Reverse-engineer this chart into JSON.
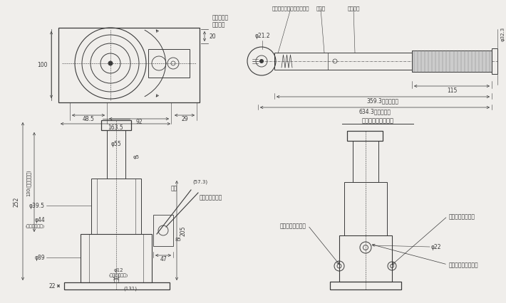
{
  "bg_color": "#f0eeeb",
  "line_color": "#3a3a3a",
  "labels": {
    "lever_rotation": "操作レバー\n回転方向",
    "release_screw_inlet": "リリーズスクリュウ差込口",
    "extendable": "伸縮式",
    "stopper": "ストッパ",
    "lever_socket": "レバーソケット",
    "handle": "取手",
    "oil_filling": "オイルフィリング",
    "lever_inlet": "操作レバー差込口",
    "release_screw2": "リリーズスクリュウ",
    "lever_detail_title": "專用操作レバー詳細",
    "phi21_2": "φ21.2",
    "phi32_3": "φ32.3",
    "phi55": "φ55",
    "phi5": "φ5",
    "phi39_5": "φ39.5",
    "phi44": "φ44",
    "phi89": "φ89",
    "phi12": "φ12",
    "phi22": "φ22",
    "cyl_inner": "(シリンダ内径)",
    "stroke130": "130(ストローク)"
  }
}
